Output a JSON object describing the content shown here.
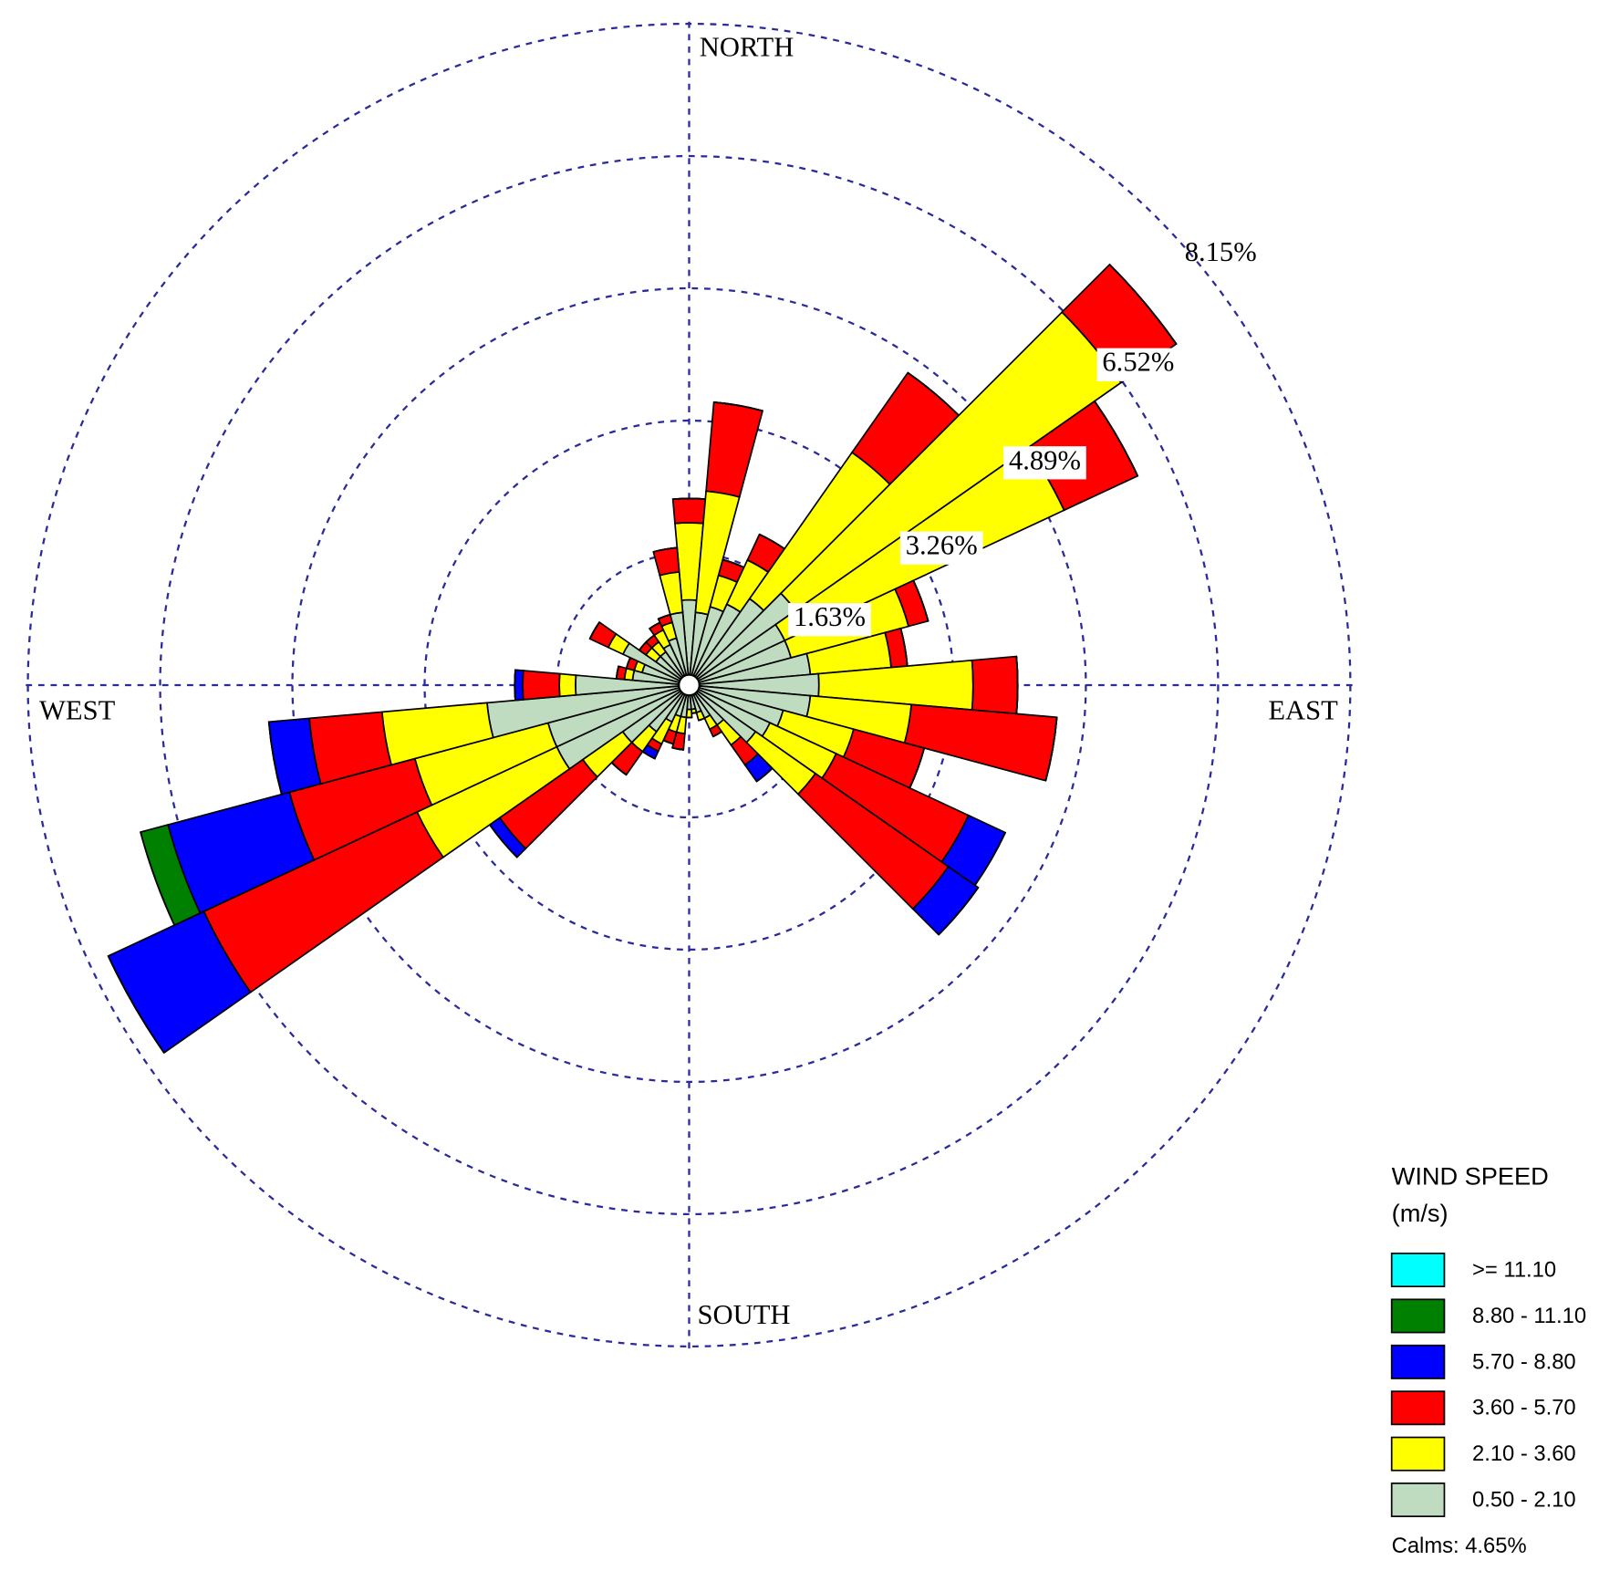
{
  "chart_data": {
    "type": "windrose",
    "x": [
      0,
      10,
      20,
      30,
      40,
      50,
      60,
      70,
      80,
      90,
      100,
      110,
      120,
      130,
      140,
      150,
      160,
      170,
      180,
      190,
      200,
      210,
      220,
      230,
      240,
      250,
      260,
      270,
      280,
      290,
      300,
      310,
      320,
      330,
      340,
      350
    ],
    "xlim": [
      0,
      360
    ],
    "rlim": [
      0,
      8.15
    ],
    "rticks": [
      {
        "value": 1.63,
        "label": "1.63%"
      },
      {
        "value": 3.26,
        "label": "3.26%"
      },
      {
        "value": 4.89,
        "label": "4.89%"
      },
      {
        "value": 6.52,
        "label": "6.52%"
      },
      {
        "value": 8.15,
        "label": "8.15%"
      }
    ],
    "grid": true,
    "direction_labels": [
      "NORTH",
      "EAST",
      "SOUTH",
      "WEST"
    ],
    "legend_title": [
      "WIND SPEED",
      "(m/s)"
    ],
    "calms_label": "Calms: 4.65%",
    "series": [
      {
        "name": "0.50 - 2.10",
        "color": "#c0dcc0",
        "values": [
          1.05,
          0.9,
          1.0,
          1.1,
          1.3,
          1.6,
          1.3,
          1.3,
          1.5,
          1.6,
          1.5,
          1.2,
          1.1,
          1.0,
          0.6,
          0.45,
          0.35,
          0.3,
          0.3,
          0.4,
          0.4,
          0.5,
          0.7,
          1.0,
          1.8,
          1.8,
          2.5,
          1.4,
          0.7,
          0.6,
          0.9,
          0.5,
          0.5,
          0.55,
          0.6,
          0.9
        ]
      },
      {
        "name": "2.10 - 3.60",
        "color": "#ffff00",
        "values": [
          0.95,
          1.5,
          0.4,
          0.6,
          2.2,
          4.9,
          3.8,
          1.5,
          1.0,
          1.9,
          1.25,
          0.9,
          0.9,
          0.9,
          0.3,
          0.15,
          0.1,
          0.05,
          0.1,
          0.2,
          0.2,
          0.3,
          0.3,
          0.6,
          1.9,
          1.7,
          1.3,
          0.2,
          0.1,
          0.1,
          0.2,
          0.15,
          0.15,
          0.2,
          0.2,
          0.5
        ]
      },
      {
        "name": "3.60 - 5.70",
        "color": "#ff0000",
        "values": [
          0.3,
          1.1,
          0.2,
          0.35,
          1.2,
          0.83,
          1.0,
          0.25,
          0.2,
          0.55,
          1.8,
          0.9,
          1.8,
          2.0,
          0.3,
          0.1,
          0,
          0,
          0,
          0.2,
          0.15,
          0.1,
          0.35,
          1.25,
          2.9,
          1.6,
          0.9,
          0.45,
          0.1,
          0.1,
          0.25,
          0.1,
          0.1,
          0.1,
          0.1,
          0.3
        ]
      },
      {
        "name": "5.70 - 8.80",
        "color": "#0000ff",
        "values": [
          0,
          0,
          0,
          0,
          0,
          0,
          0,
          0,
          0,
          0,
          0,
          0,
          0.5,
          0.45,
          0.25,
          0,
          0,
          0,
          0,
          0,
          0,
          0.1,
          0,
          0.15,
          1.3,
          1.55,
          0.5,
          0.1,
          0,
          0,
          0,
          0,
          0,
          0,
          0,
          0
        ]
      },
      {
        "name": "8.80 - 11.10",
        "color": "#008000",
        "values": [
          0,
          0,
          0,
          0,
          0,
          0,
          0,
          0,
          0,
          0,
          0,
          0,
          0,
          0,
          0,
          0,
          0,
          0,
          0,
          0,
          0,
          0,
          0,
          0,
          0,
          0.35,
          0,
          0,
          0,
          0,
          0,
          0,
          0,
          0,
          0,
          0
        ]
      },
      {
        "name": ">= 11.10",
        "color": "#00ffff",
        "values": [
          0,
          0,
          0,
          0,
          0,
          0,
          0,
          0,
          0,
          0,
          0,
          0,
          0,
          0,
          0,
          0,
          0,
          0,
          0,
          0,
          0,
          0,
          0,
          0,
          0,
          0,
          0,
          0,
          0,
          0,
          0,
          0,
          0,
          0,
          0,
          0
        ]
      }
    ]
  }
}
